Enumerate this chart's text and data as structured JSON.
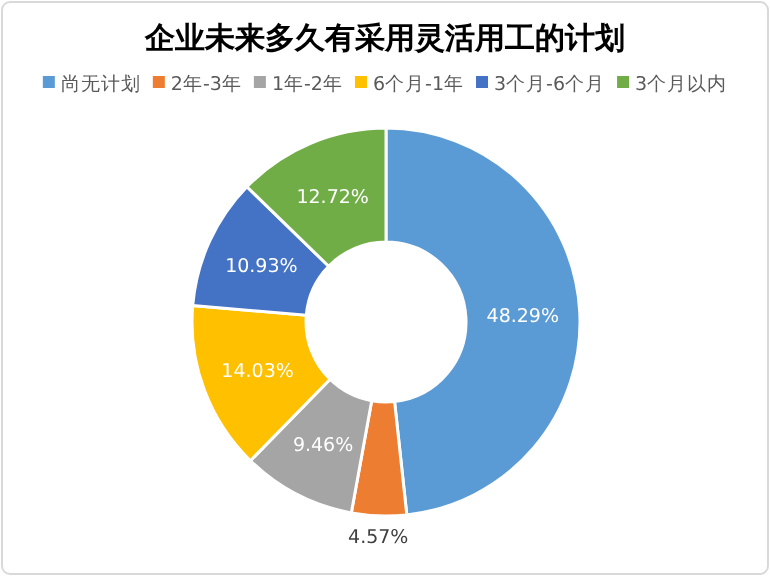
{
  "chart_data": {
    "type": "donut",
    "title": "企业未来多久有采用灵活用工的计划",
    "categories": [
      "尚无计划",
      "2年-3年",
      "1年-2年",
      "6个月-1年",
      "3个月-6个月",
      "3个月以内"
    ],
    "values": [
      48.29,
      4.57,
      9.46,
      14.03,
      10.93,
      12.72
    ],
    "colors": [
      "#5b9bd5",
      "#ed7d31",
      "#a5a5a5",
      "#ffc000",
      "#4472c4",
      "#70ad47"
    ],
    "value_labels": [
      "48.29%",
      "4.57%",
      "9.46%",
      "14.03%",
      "10.93%",
      "12.72%"
    ],
    "legend": "top"
  }
}
